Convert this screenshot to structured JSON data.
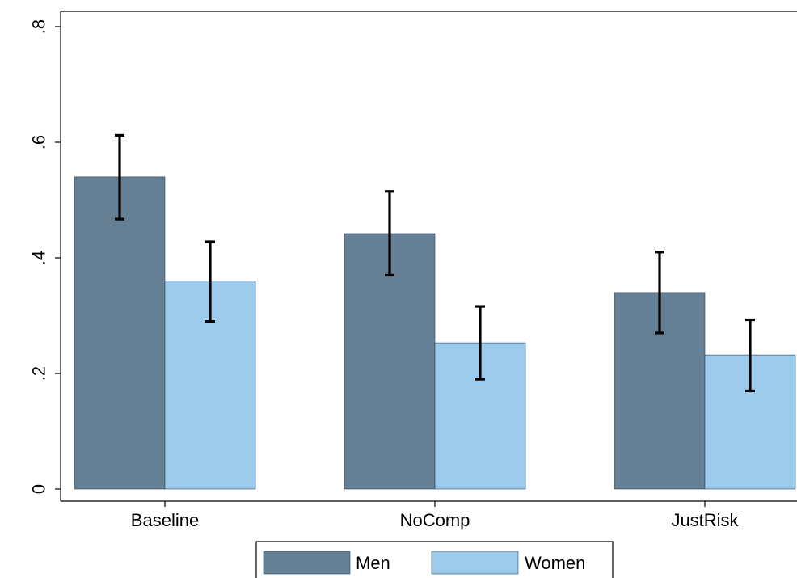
{
  "chart_data": {
    "type": "bar",
    "title": "",
    "xlabel": "",
    "ylabel": "",
    "ylim": [
      0,
      0.8
    ],
    "yticks": [
      {
        "value": 0,
        "label": "0"
      },
      {
        "value": 0.2,
        "label": ".2"
      },
      {
        "value": 0.4,
        "label": ".4"
      },
      {
        "value": 0.6,
        "label": ".6"
      },
      {
        "value": 0.8,
        "label": ".8"
      }
    ],
    "categories": [
      "Baseline",
      "NoComp",
      "JustRisk"
    ],
    "series": [
      {
        "name": "Men",
        "color": "#657f94",
        "values": [
          0.54,
          0.442,
          0.34
        ],
        "ci_low": [
          0.467,
          0.37,
          0.27
        ],
        "ci_high": [
          0.612,
          0.515,
          0.41
        ]
      },
      {
        "name": "Women",
        "color": "#9dcbeb",
        "values": [
          0.36,
          0.253,
          0.232
        ],
        "ci_low": [
          0.29,
          0.19,
          0.17
        ],
        "ci_high": [
          0.428,
          0.316,
          0.293
        ]
      }
    ],
    "grid": false,
    "legend": "bottom-center"
  }
}
